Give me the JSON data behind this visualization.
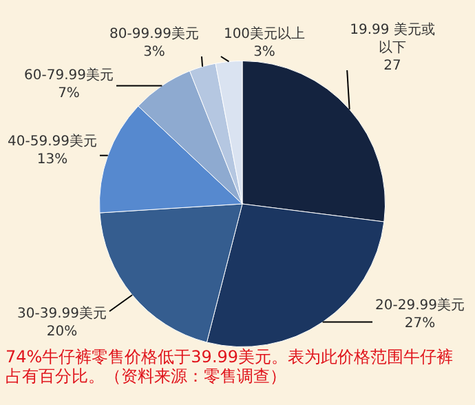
{
  "chart_data": {
    "type": "pie",
    "categories": [
      "19.99 美元或以下",
      "20-29.99美元",
      "30-39.99美元",
      "40-59.99美元",
      "60-79.99美元",
      "80-99.99美元",
      "100美元以上"
    ],
    "values": [
      27,
      27,
      20,
      13,
      7,
      3,
      3
    ],
    "colors": [
      "#14233f",
      "#1b3661",
      "#355d8f",
      "#5689cf",
      "#8eaad0",
      "#b5c7e1",
      "#dae3f1"
    ],
    "value_labels": [
      "27",
      "27%",
      "20%",
      "13%",
      "7%",
      "3%",
      "3%"
    ],
    "legend": false,
    "annotations": [
      "74%牛仔裤零售价格低于39.99美元。表为此价格范围牛仔裤占有百分比。（资料来源：零售调查）"
    ]
  }
}
